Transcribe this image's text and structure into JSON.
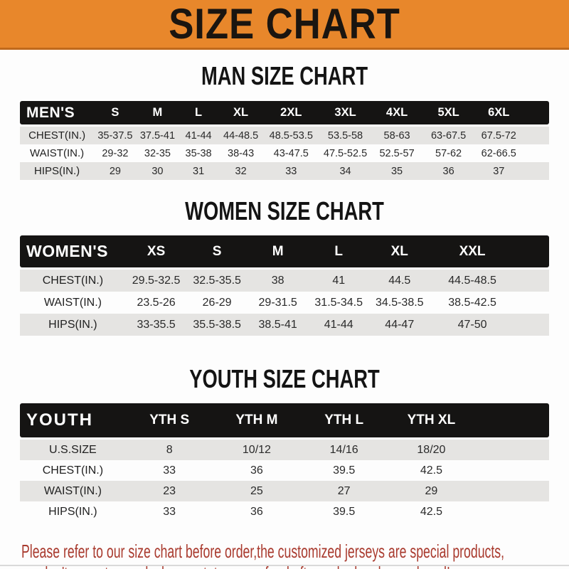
{
  "banner": {
    "title": "SIZE CHART",
    "bg_color": "#E8872B",
    "text_color": "#1A1510"
  },
  "sections": {
    "men": {
      "title": "MAN SIZE CHART",
      "header": [
        "MEN'S",
        "S",
        "M",
        "L",
        "XL",
        "2XL",
        "3XL",
        "4XL",
        "5XL",
        "6XL"
      ],
      "rows": [
        [
          "CHEST(IN.)",
          "35-37.5",
          "37.5-41",
          "41-44",
          "44-48.5",
          "48.5-53.5",
          "53.5-58",
          "58-63",
          "63-67.5",
          "67.5-72"
        ],
        [
          "WAIST(IN.)",
          "29-32",
          "32-35",
          "35-38",
          "38-43",
          "43-47.5",
          "47.5-52.5",
          "52.5-57",
          "57-62",
          "62-66.5"
        ],
        [
          "HIPS(IN.)",
          "29",
          "30",
          "31",
          "32",
          "33",
          "34",
          "35",
          "36",
          "37"
        ]
      ]
    },
    "women": {
      "title": "WOMEN SIZE CHART",
      "header": [
        "WOMEN'S",
        "XS",
        "S",
        "M",
        "L",
        "XL",
        "XXL"
      ],
      "rows": [
        [
          "CHEST(IN.)",
          "29.5-32.5",
          "32.5-35.5",
          "38",
          "41",
          "44.5",
          "44.5-48.5"
        ],
        [
          "WAIST(IN.)",
          "23.5-26",
          "26-29",
          "29-31.5",
          "31.5-34.5",
          "34.5-38.5",
          "38.5-42.5"
        ],
        [
          "HIPS(IN.)",
          "33-35.5",
          "35.5-38.5",
          "38.5-41",
          "41-44",
          "44-47",
          "47-50"
        ]
      ]
    },
    "youth": {
      "title": "YOUTH SIZE CHART",
      "header": [
        "YOUTH",
        "YTH S",
        "YTH M",
        "YTH L",
        "YTH XL"
      ],
      "rows": [
        [
          "U.S.SIZE",
          "8",
          "10/12",
          "14/16",
          "18/20"
        ],
        [
          "CHEST(IN.)",
          "33",
          "36",
          "39.5",
          "42.5"
        ],
        [
          "WAIST(IN.)",
          "23",
          "25",
          "27",
          "29"
        ],
        [
          "HIPS(IN.)",
          "33",
          "36",
          "39.5",
          "42.5"
        ]
      ]
    }
  },
  "footer": {
    "line1": "Please refer to our size chart before order,the customized jerseys are special products,",
    "line2": "we don't accept cancel, change, teturn or refund after order has been placed!",
    "text_color": "#A93A2E"
  }
}
